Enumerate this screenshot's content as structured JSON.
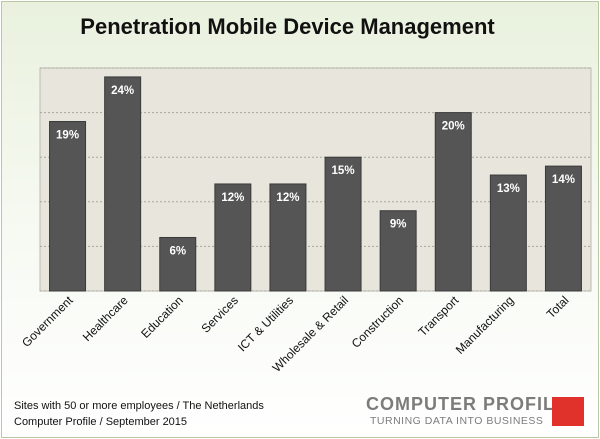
{
  "chart_data": {
    "type": "bar",
    "title": "Penetration Mobile Device Management",
    "categories": [
      "Government",
      "Healthcare",
      "Education",
      "Services",
      "ICT & Utilities",
      "Wholesale & Retail",
      "Construction",
      "Transport",
      "Manufacturing",
      "Total"
    ],
    "values": [
      19,
      24,
      6,
      12,
      12,
      15,
      9,
      20,
      13,
      14
    ],
    "data_labels": [
      "19%",
      "24%",
      "6%",
      "12%",
      "12%",
      "15%",
      "9%",
      "20%",
      "13%",
      "14%"
    ],
    "unit": "%",
    "ylim": [
      0,
      25
    ],
    "y_gridlines": [
      0,
      5,
      10,
      15,
      20,
      25
    ],
    "grid": true,
    "legend": "none",
    "bar_color": "#555555",
    "plot_background": "#e8e6dc"
  },
  "footer": {
    "line1": "Sites with 50 or more employees / The Netherlands",
    "line2": "Computer Profile / September 2015"
  },
  "logo": {
    "name": "COMPUTER PROFILE",
    "tagline": "TURNING DATA INTO BUSINESS",
    "accent_color": "#e0312b"
  }
}
